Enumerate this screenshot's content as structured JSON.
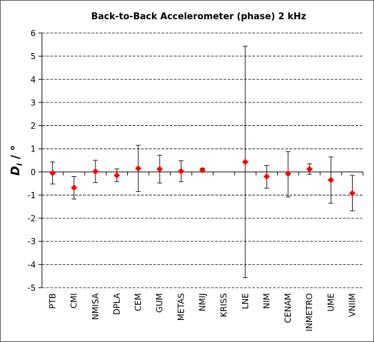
{
  "chart_data": {
    "type": "scatter",
    "title": "Back-to-Back Accelerometer  (phase)   2 kHz",
    "ylabel_main": "D",
    "ylabel_sub": "i",
    "ylabel_rest": " / °",
    "xlabel": "",
    "ylim": [
      -5,
      6
    ],
    "yticks": [
      -5,
      -4,
      -3,
      -2,
      -1,
      0,
      1,
      2,
      3,
      4,
      5,
      6
    ],
    "grid": "horizontal dashed",
    "legend": "none",
    "marker_color": "#ff0000",
    "categories": [
      "PTB",
      "CMI",
      "NMISA",
      "DPLA",
      "CEM",
      "GUM",
      "METAS",
      "NMIJ",
      "KRISS",
      "LNE",
      "NIM",
      "CENAM",
      "INMETRO",
      "UME",
      "VNIIM"
    ],
    "points": [
      {
        "lab": "PTB",
        "value": -0.05,
        "low": -0.52,
        "high": 0.43
      },
      {
        "lab": "CMI",
        "value": -0.68,
        "low": -1.17,
        "high": -0.2
      },
      {
        "lab": "NMISA",
        "value": 0.02,
        "low": -0.46,
        "high": 0.5
      },
      {
        "lab": "DPLA",
        "value": -0.15,
        "low": -0.42,
        "high": 0.13
      },
      {
        "lab": "CEM",
        "value": 0.15,
        "low": -0.85,
        "high": 1.15
      },
      {
        "lab": "GUM",
        "value": 0.12,
        "low": -0.48,
        "high": 0.72
      },
      {
        "lab": "METAS",
        "value": 0.03,
        "low": -0.42,
        "high": 0.48
      },
      {
        "lab": "NMIJ",
        "value": 0.08,
        "low": 0.0,
        "high": 0.16
      },
      {
        "lab": "KRISS",
        "value": null,
        "low": null,
        "high": null
      },
      {
        "lab": "LNE",
        "value": 0.43,
        "low": -4.57,
        "high": 5.43
      },
      {
        "lab": "NIM",
        "value": -0.2,
        "low": -0.7,
        "high": 0.28
      },
      {
        "lab": "CENAM",
        "value": -0.08,
        "low": -1.08,
        "high": 0.88
      },
      {
        "lab": "INMETRO",
        "value": 0.12,
        "low": -0.1,
        "high": 0.35
      },
      {
        "lab": "UME",
        "value": -0.35,
        "low": -1.35,
        "high": 0.65
      },
      {
        "lab": "VNIIM",
        "value": -0.92,
        "low": -1.68,
        "high": -0.15
      }
    ]
  }
}
